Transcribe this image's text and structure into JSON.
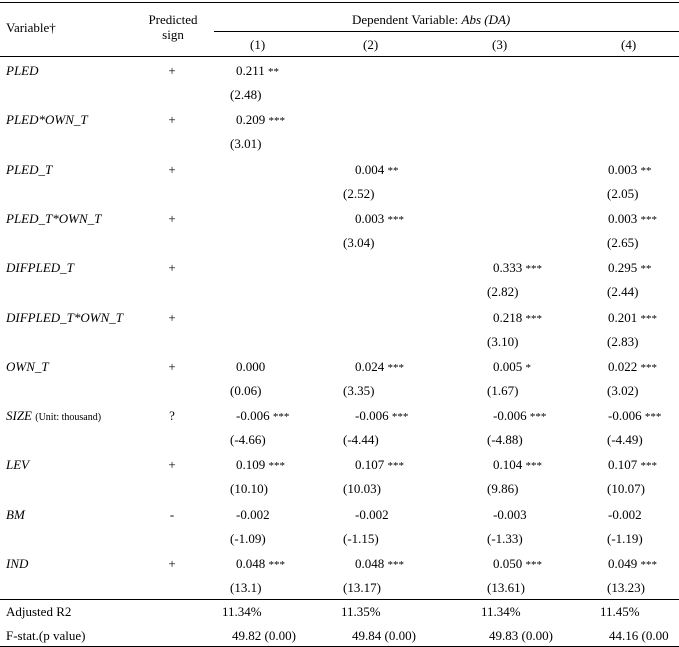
{
  "header": {
    "variable_label": "Variable†",
    "sign_label_line1": "Predicted",
    "sign_label_line2": "sign",
    "dependent_label": "Dependent Variable: ",
    "dependent_var": "Abs (DA)",
    "columns": [
      "(1)",
      "(2)",
      "(3)",
      "(4)"
    ]
  },
  "rows": [
    {
      "name": "PLED",
      "note": "",
      "sign": "+",
      "coef": [
        {
          "v": "0.211",
          "s": "**"
        },
        null,
        null,
        null
      ],
      "t": [
        "(2.48)",
        "",
        "",
        ""
      ]
    },
    {
      "name": "PLED*OWN_T",
      "note": "",
      "sign": "+",
      "coef": [
        {
          "v": "0.209",
          "s": "***"
        },
        null,
        null,
        null
      ],
      "t": [
        "(3.01)",
        "",
        "",
        ""
      ]
    },
    {
      "name": "PLED_T",
      "note": "",
      "sign": "+",
      "coef": [
        null,
        {
          "v": "0.004",
          "s": "**"
        },
        null,
        {
          "v": "0.003",
          "s": "**"
        }
      ],
      "t": [
        "",
        "(2.52)",
        "",
        "(2.05)"
      ]
    },
    {
      "name": "PLED_T*OWN_T",
      "note": "",
      "sign": "+",
      "coef": [
        null,
        {
          "v": "0.003",
          "s": "***"
        },
        null,
        {
          "v": "0.003",
          "s": "***"
        }
      ],
      "t": [
        "",
        "(3.04)",
        "",
        "(2.65)"
      ]
    },
    {
      "name": "DIFPLED_T",
      "note": "",
      "sign": "+",
      "coef": [
        null,
        null,
        {
          "v": "0.333",
          "s": "***"
        },
        {
          "v": "0.295",
          "s": "**"
        }
      ],
      "t": [
        "",
        "",
        "(2.82)",
        "(2.44)"
      ]
    },
    {
      "name": "DIFPLED_T*OWN_T",
      "note": "",
      "sign": "+",
      "coef": [
        null,
        null,
        {
          "v": "0.218",
          "s": "***"
        },
        {
          "v": "0.201",
          "s": "***"
        }
      ],
      "t": [
        "",
        "",
        "(3.10)",
        "(2.83)"
      ]
    },
    {
      "name": "OWN_T",
      "note": "",
      "sign": "+",
      "coef": [
        {
          "v": "0.000",
          "s": ""
        },
        {
          "v": "0.024",
          "s": "***"
        },
        {
          "v": "0.005",
          "s": "*"
        },
        {
          "v": "0.022",
          "s": "***"
        }
      ],
      "t": [
        "(0.06)",
        "(3.35)",
        "(1.67)",
        "(3.02)"
      ]
    },
    {
      "name": "SIZE",
      "note": "(Unit: thousand)",
      "sign": "?",
      "coef": [
        {
          "v": "-0.006",
          "s": "***"
        },
        {
          "v": "-0.006",
          "s": "***"
        },
        {
          "v": "-0.006",
          "s": "***"
        },
        {
          "v": "-0.006",
          "s": "***"
        }
      ],
      "t": [
        "(-4.66)",
        "(-4.44)",
        "(-4.88)",
        "(-4.49)"
      ]
    },
    {
      "name": "LEV",
      "note": "",
      "sign": "+",
      "coef": [
        {
          "v": "0.109",
          "s": "***"
        },
        {
          "v": "0.107",
          "s": "***"
        },
        {
          "v": "0.104",
          "s": "***"
        },
        {
          "v": "0.107",
          "s": "***"
        }
      ],
      "t": [
        "(10.10)",
        "(10.03)",
        "(9.86)",
        "(10.07)"
      ]
    },
    {
      "name": "BM",
      "note": "",
      "sign": "-",
      "coef": [
        {
          "v": "-0.002",
          "s": ""
        },
        {
          "v": "-0.002",
          "s": ""
        },
        {
          "v": "-0.003",
          "s": ""
        },
        {
          "v": "-0.002",
          "s": ""
        }
      ],
      "t": [
        "(-1.09)",
        "(-1.15)",
        "(-1.33)",
        "(-1.19)"
      ]
    },
    {
      "name": "IND",
      "note": "",
      "sign": "+",
      "coef": [
        {
          "v": "0.048",
          "s": "***"
        },
        {
          "v": "0.048",
          "s": "***"
        },
        {
          "v": "0.050",
          "s": "***"
        },
        {
          "v": "0.049",
          "s": "***"
        }
      ],
      "t": [
        "(13.1)",
        "(13.17)",
        "(13.61)",
        "(13.23)"
      ]
    }
  ],
  "footer": [
    {
      "label": "Adjusted R2",
      "values": [
        "11.34%",
        "11.35%",
        "11.34%",
        "11.45%"
      ]
    },
    {
      "label": "F-stat.(p value)",
      "values": [
        "49.82 (0.00)",
        "49.84 (0.00)",
        "49.83 (0.00)",
        "44.16 (0.00"
      ]
    }
  ]
}
